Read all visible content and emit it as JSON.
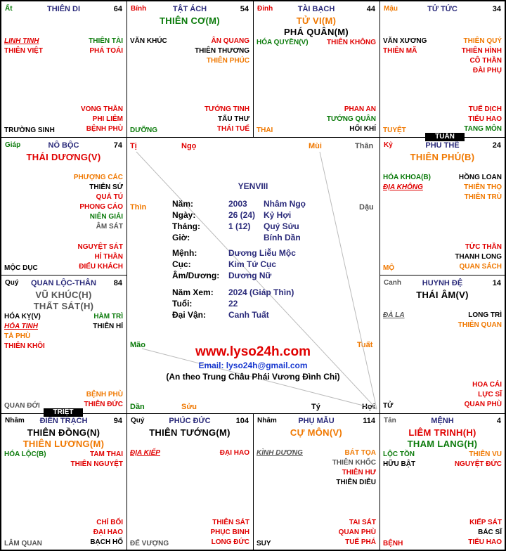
{
  "cells": [
    {
      "id": "c0",
      "can": "Ất",
      "can_color": "grn",
      "cung": "THIÊN DI",
      "num": "64",
      "main": [],
      "left": [
        {
          "t": "LINH TINH",
          "c": "red u"
        },
        {
          "t": "THIÊN VIỆT",
          "c": "red"
        }
      ],
      "right": [
        {
          "t": "THIÊN TÀI",
          "c": "grn"
        },
        {
          "t": "PHÁ TOÁI",
          "c": "red"
        }
      ],
      "br": [
        {
          "t": "VONG THẦN",
          "c": "red"
        },
        {
          "t": "PHI LIÊM",
          "c": "red"
        },
        {
          "t": "BỆNH PHÙ",
          "c": "red"
        }
      ],
      "bl": {
        "t": "TRƯỜNG SINH",
        "c": "blk"
      }
    },
    {
      "id": "c1",
      "can": "Bính",
      "can_color": "red",
      "cung": "TẬT ÁCH",
      "num": "54",
      "main": [
        {
          "t": "THIÊN CƠ(M)",
          "c": "grn"
        }
      ],
      "left": [
        {
          "t": "VĂN KHÚC",
          "c": "blk"
        }
      ],
      "right": [
        {
          "t": "ÂN QUANG",
          "c": "red"
        },
        {
          "t": "THIÊN THƯƠNG",
          "c": "blk"
        },
        {
          "t": "THIÊN PHÚC",
          "c": "org"
        }
      ],
      "br": [
        {
          "t": "TƯỚNG TINH",
          "c": "red"
        },
        {
          "t": "TẤU THƯ",
          "c": "blk"
        },
        {
          "t": "THÁI TUẾ",
          "c": "red"
        }
      ],
      "bl": {
        "t": "DƯỠNG",
        "c": "grn"
      }
    },
    {
      "id": "c2",
      "can": "Đinh",
      "can_color": "red",
      "cung": "TÀI BẠCH",
      "num": "44",
      "main": [
        {
          "t": "TỬ VI(M)",
          "c": "org"
        },
        {
          "t": "PHÁ QUÂN(M)",
          "c": "blk"
        }
      ],
      "left": [
        {
          "t": "HÓA QUYỀN(V)",
          "c": "grn"
        }
      ],
      "right": [
        {
          "t": "THIÊN KHÔNG",
          "c": "red"
        }
      ],
      "br": [
        {
          "t": "PHAN AN",
          "c": "red"
        },
        {
          "t": "TƯỚNG QUÂN",
          "c": "grn"
        },
        {
          "t": "HỐI KHÍ",
          "c": "blk"
        }
      ],
      "bl": {
        "t": "THAI",
        "c": "org"
      }
    },
    {
      "id": "c3",
      "can": "Mậu",
      "can_color": "org",
      "cung": "TỬ TỨC",
      "num": "34",
      "main": [],
      "left": [
        {
          "t": "VĂN XƯƠNG",
          "c": "blk"
        },
        {
          "t": "THIÊN MÃ",
          "c": "red"
        }
      ],
      "right": [
        {
          "t": "THIÊN QUÝ",
          "c": "org"
        },
        {
          "t": "THIÊN HÌNH",
          "c": "red"
        },
        {
          "t": "CÔ THẦN",
          "c": "red"
        },
        {
          "t": "ĐÀI PHỤ",
          "c": "red"
        }
      ],
      "br": [
        {
          "t": "TUẾ DỊCH",
          "c": "red"
        },
        {
          "t": "TIỂU HAO",
          "c": "red"
        },
        {
          "t": "TANG MÔN",
          "c": "grn"
        }
      ],
      "bl": {
        "t": "TUYỆT",
        "c": "org"
      }
    },
    {
      "id": "c4",
      "can": "Giáp",
      "can_color": "grn",
      "cung": "NÔ BỘC",
      "num": "74",
      "main": [
        {
          "t": "THÁI DƯƠNG(V)",
          "c": "red"
        }
      ],
      "left": [],
      "right": [
        {
          "t": "PHƯỢNG CÁC",
          "c": "org"
        },
        {
          "t": "THIÊN SỨ",
          "c": "blk"
        },
        {
          "t": "QUẢ TÚ",
          "c": "red"
        },
        {
          "t": "PHONG CÁO",
          "c": "red"
        },
        {
          "t": "NIÊN GIẢI",
          "c": "grn"
        },
        {
          "t": "ÂM SÁT",
          "c": "gry"
        }
      ],
      "br": [
        {
          "t": "NGUYỆT SÁT",
          "c": "red"
        },
        {
          "t": "HỈ THẦN",
          "c": "red"
        },
        {
          "t": "ĐIẾU KHÁCH",
          "c": "red"
        }
      ],
      "bl": {
        "t": "MỘC DỤC",
        "c": "blk"
      }
    },
    {
      "id": "c5",
      "can": "Kỷ",
      "can_color": "red",
      "cung": "PHU THÊ",
      "num": "24",
      "main": [
        {
          "t": "THIÊN PHỦ(B)",
          "c": "org"
        }
      ],
      "left": [
        {
          "t": "HÓA KHOA(B)",
          "c": "grn"
        },
        {
          "t": "ĐỊA KHÔNG",
          "c": "red u"
        }
      ],
      "right": [
        {
          "t": "HỒNG LOAN",
          "c": "blk"
        },
        {
          "t": "THIÊN THỌ",
          "c": "org"
        },
        {
          "t": "THIÊN TRÙ",
          "c": "org"
        }
      ],
      "br": [
        {
          "t": "TỨC THẦN",
          "c": "red"
        },
        {
          "t": "THANH LONG",
          "c": "blk"
        },
        {
          "t": "QUAN SÁCH",
          "c": "org"
        }
      ],
      "bl": {
        "t": "MỘ",
        "c": "org"
      }
    },
    {
      "id": "c6",
      "can": "Quý",
      "can_color": "blk",
      "cung": "QUAN LỘC-THÂN",
      "num": "84",
      "main": [
        {
          "t": "VŨ KHÚC(H)",
          "c": "gry"
        },
        {
          "t": "THẤT SÁT(H)",
          "c": "gry"
        }
      ],
      "left": [
        {
          "t": "HÓA KỴ(V)",
          "c": "blk"
        },
        {
          "t": "HỎA TINH",
          "c": "red u"
        },
        {
          "t": "TẢ PHÙ",
          "c": "org"
        },
        {
          "t": "THIÊN KHÔI",
          "c": "red"
        }
      ],
      "right": [
        {
          "t": "HÀM TRÌ",
          "c": "grn"
        },
        {
          "t": "THIÊN HỈ",
          "c": "blk"
        }
      ],
      "br": [
        {
          "t": "BỆNH PHÙ",
          "c": "org"
        },
        {
          "t": "THIÊN ĐỨC",
          "c": "red"
        }
      ],
      "bl": {
        "t": "QUAN ĐỚI",
        "c": "gry"
      }
    },
    {
      "id": "c7",
      "can": "Canh",
      "can_color": "gry",
      "cung": "HUYNH ĐỆ",
      "num": "14",
      "main": [
        {
          "t": "THÁI ÂM(V)",
          "c": "blk"
        }
      ],
      "left": [
        {
          "t": "ĐÀ LA",
          "c": "gry u"
        }
      ],
      "right": [
        {
          "t": "LONG TRÌ",
          "c": "blk"
        },
        {
          "t": "THIÊN QUAN",
          "c": "org"
        }
      ],
      "br": [
        {
          "t": "HOA CÁI",
          "c": "red"
        },
        {
          "t": "LỰC SĨ",
          "c": "red"
        },
        {
          "t": "QUAN PHÙ",
          "c": "red"
        }
      ],
      "bl": {
        "t": "TỬ",
        "c": "blk"
      }
    },
    {
      "id": "c8",
      "can": "Nhâm",
      "can_color": "blk",
      "cung": "ĐIỀN TRẠCH",
      "num": "94",
      "main": [
        {
          "t": "THIÊN ĐỒNG(N)",
          "c": "blk"
        },
        {
          "t": "THIÊN LƯƠNG(M)",
          "c": "org"
        }
      ],
      "left": [
        {
          "t": "HÓA LỘC(B)",
          "c": "grn"
        }
      ],
      "right": [
        {
          "t": "TAM THAI",
          "c": "red"
        },
        {
          "t": "THIÊN NGUYỆT",
          "c": "red"
        }
      ],
      "br": [
        {
          "t": "CHỈ BỐI",
          "c": "red"
        },
        {
          "t": "ĐẠI HAO",
          "c": "red"
        },
        {
          "t": "BẠCH HỔ",
          "c": "blk"
        }
      ],
      "bl": {
        "t": "LÂM QUAN",
        "c": "gry"
      }
    },
    {
      "id": "c9",
      "can": "Quý",
      "can_color": "blk",
      "cung": "PHÚC ĐỨC",
      "num": "104",
      "main": [
        {
          "t": "THIÊN TƯỚNG(M)",
          "c": "blk"
        }
      ],
      "left": [
        {
          "t": "ĐỊA KIẾP",
          "c": "red u"
        }
      ],
      "right": [
        {
          "t": "ĐẠI HAO",
          "c": "red"
        }
      ],
      "br": [
        {
          "t": "THIÊN SÁT",
          "c": "red"
        },
        {
          "t": "PHỤC BINH",
          "c": "red"
        },
        {
          "t": "LONG ĐỨC",
          "c": "red"
        }
      ],
      "bl": {
        "t": "ĐẾ VƯỢNG",
        "c": "gry"
      }
    },
    {
      "id": "c10",
      "can": "Nhâm",
      "can_color": "blk",
      "cung": "PHỤ MẪU",
      "num": "114",
      "main": [
        {
          "t": "CỰ MÔN(V)",
          "c": "org"
        }
      ],
      "left": [
        {
          "t": "KÌNH DƯƠNG",
          "c": "gry u"
        }
      ],
      "right": [
        {
          "t": "BÁT TỌA",
          "c": "org"
        },
        {
          "t": "THIÊN KHỐC",
          "c": "gry"
        },
        {
          "t": "THIÊN HƯ",
          "c": "red"
        },
        {
          "t": "THIÊN DIÊU",
          "c": "blk"
        }
      ],
      "br": [
        {
          "t": "TAI SÁT",
          "c": "red"
        },
        {
          "t": "QUAN PHÙ",
          "c": "red"
        },
        {
          "t": "TUẾ PHÁ",
          "c": "red"
        }
      ],
      "bl": {
        "t": "SUY",
        "c": "blk"
      }
    },
    {
      "id": "c11",
      "can": "Tân",
      "can_color": "gry",
      "cung": "MỆNH",
      "num": "4",
      "main": [
        {
          "t": "LIÊM TRINH(H)",
          "c": "red"
        },
        {
          "t": "THAM LANG(H)",
          "c": "grn"
        }
      ],
      "left": [
        {
          "t": "LỘC TỒN",
          "c": "grn"
        },
        {
          "t": "HỮU BẬT",
          "c": "blk"
        }
      ],
      "right": [
        {
          "t": "THIÊN VU",
          "c": "org"
        },
        {
          "t": "NGUYỆT ĐỨC",
          "c": "red"
        }
      ],
      "br": [
        {
          "t": "KIẾP SÁT",
          "c": "red"
        },
        {
          "t": "BÁC SĨ",
          "c": "blk"
        },
        {
          "t": "TIỂU HAO",
          "c": "red"
        }
      ],
      "bl": {
        "t": "BỆNH",
        "c": "red"
      }
    }
  ],
  "tags": {
    "tuan": "TUẦN",
    "triet": "TRIỆT"
  },
  "branches": {
    "ti": "Tị",
    "ngo": "Ngọ",
    "mui": "Mùi",
    "than": "Thân",
    "thin": "Thìn",
    "dau": "Dậu",
    "mao": "Mão",
    "tuat": "Tuất",
    "dan": "Dần",
    "suu": "Sửu",
    "ty": "Tý",
    "hoi": "Hợi"
  },
  "center": {
    "name": "YENVIII",
    "rows": [
      {
        "k": "Năm:",
        "v": "2003",
        "v2": "Nhâm Ngọ"
      },
      {
        "k": "Ngày:",
        "v": "26 (24)",
        "v2": "Kỷ Hợi"
      },
      {
        "k": "Tháng:",
        "v": "1 (12)",
        "v2": "Quý Sửu"
      },
      {
        "k": "Giờ:",
        "v": "",
        "v2": "Bính Dần"
      },
      {
        "k": "Mệnh:",
        "v": "Dương Liễu Mộc",
        "v2": ""
      },
      {
        "k": "Cục:",
        "v": "Kim Tứ Cục",
        "v2": ""
      },
      {
        "k": "Âm/Dương:",
        "v": "Dương Nữ",
        "v2": ""
      },
      {
        "k": "Năm Xem:",
        "v": "2024 (Giáp Thìn)",
        "v2": ""
      },
      {
        "k": "Tuổi:",
        "v": "22",
        "v2": ""
      },
      {
        "k": "Đại Vận:",
        "v": "Canh Tuất",
        "v2": ""
      }
    ],
    "site": "www.lyso24h.com",
    "email": "Email: lyso24h@gmail.com",
    "note": "(An theo Trung Châu Phái Vương Đình Chi)",
    "colors": {
      "site": "#e00000",
      "email": "#1a3ad0"
    }
  }
}
